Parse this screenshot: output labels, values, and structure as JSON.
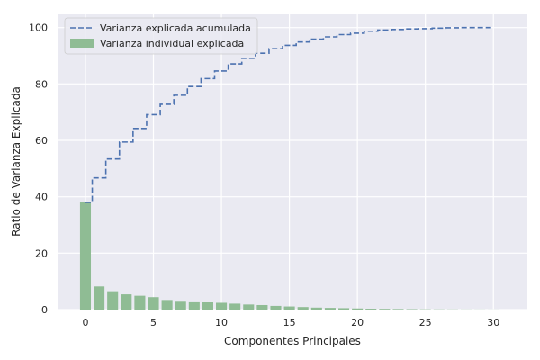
{
  "chart_data": {
    "type": "bar",
    "xlabel": "Componentes Principales",
    "ylabel": "Ratio de Varianza Explicada",
    "xlim": [
      -2.05,
      32.5
    ],
    "ylim": [
      0,
      105
    ],
    "xticks": [
      0,
      5,
      10,
      15,
      20,
      25,
      30
    ],
    "yticks": [
      0,
      20,
      40,
      60,
      80,
      100
    ],
    "grid": true,
    "legend_position": "top-left",
    "colors": {
      "background": "#eaeaf2",
      "bar": "#8fbc94",
      "line": "#4c72b0",
      "grid": "#ffffff"
    },
    "series": [
      {
        "name": "Varianza individual explicada",
        "kind": "bar",
        "x": [
          0,
          1,
          2,
          3,
          4,
          5,
          6,
          7,
          8,
          9,
          10,
          11,
          12,
          13,
          14,
          15,
          16,
          17,
          18,
          19,
          20,
          21,
          22,
          23,
          24,
          25,
          26,
          27,
          28,
          29,
          30
        ],
        "values": [
          38.0,
          8.2,
          6.5,
          5.4,
          4.9,
          4.4,
          3.4,
          3.1,
          2.9,
          2.8,
          2.4,
          2.1,
          1.8,
          1.6,
          1.3,
          1.1,
          0.9,
          0.7,
          0.6,
          0.5,
          0.4,
          0.3,
          0.25,
          0.2,
          0.15,
          0.1,
          0.08,
          0.06,
          0.04,
          0.03,
          0.02
        ]
      },
      {
        "name": "Varianza explicada acumulada",
        "kind": "step",
        "x": [
          0,
          1,
          2,
          3,
          4,
          5,
          6,
          7,
          8,
          9,
          10,
          11,
          12,
          13,
          14,
          15,
          16,
          17,
          18,
          19,
          20,
          21,
          22,
          23,
          24,
          25,
          26,
          27,
          28,
          29,
          30
        ],
        "values": [
          38.0,
          46.7,
          53.4,
          59.4,
          64.2,
          69.1,
          72.8,
          76.0,
          79.1,
          81.9,
          84.6,
          87.1,
          89.1,
          90.9,
          92.5,
          93.7,
          94.9,
          95.9,
          96.7,
          97.5,
          98.0,
          98.7,
          99.1,
          99.3,
          99.5,
          99.6,
          99.8,
          99.9,
          100.0,
          100.0,
          100.0
        ]
      }
    ]
  }
}
